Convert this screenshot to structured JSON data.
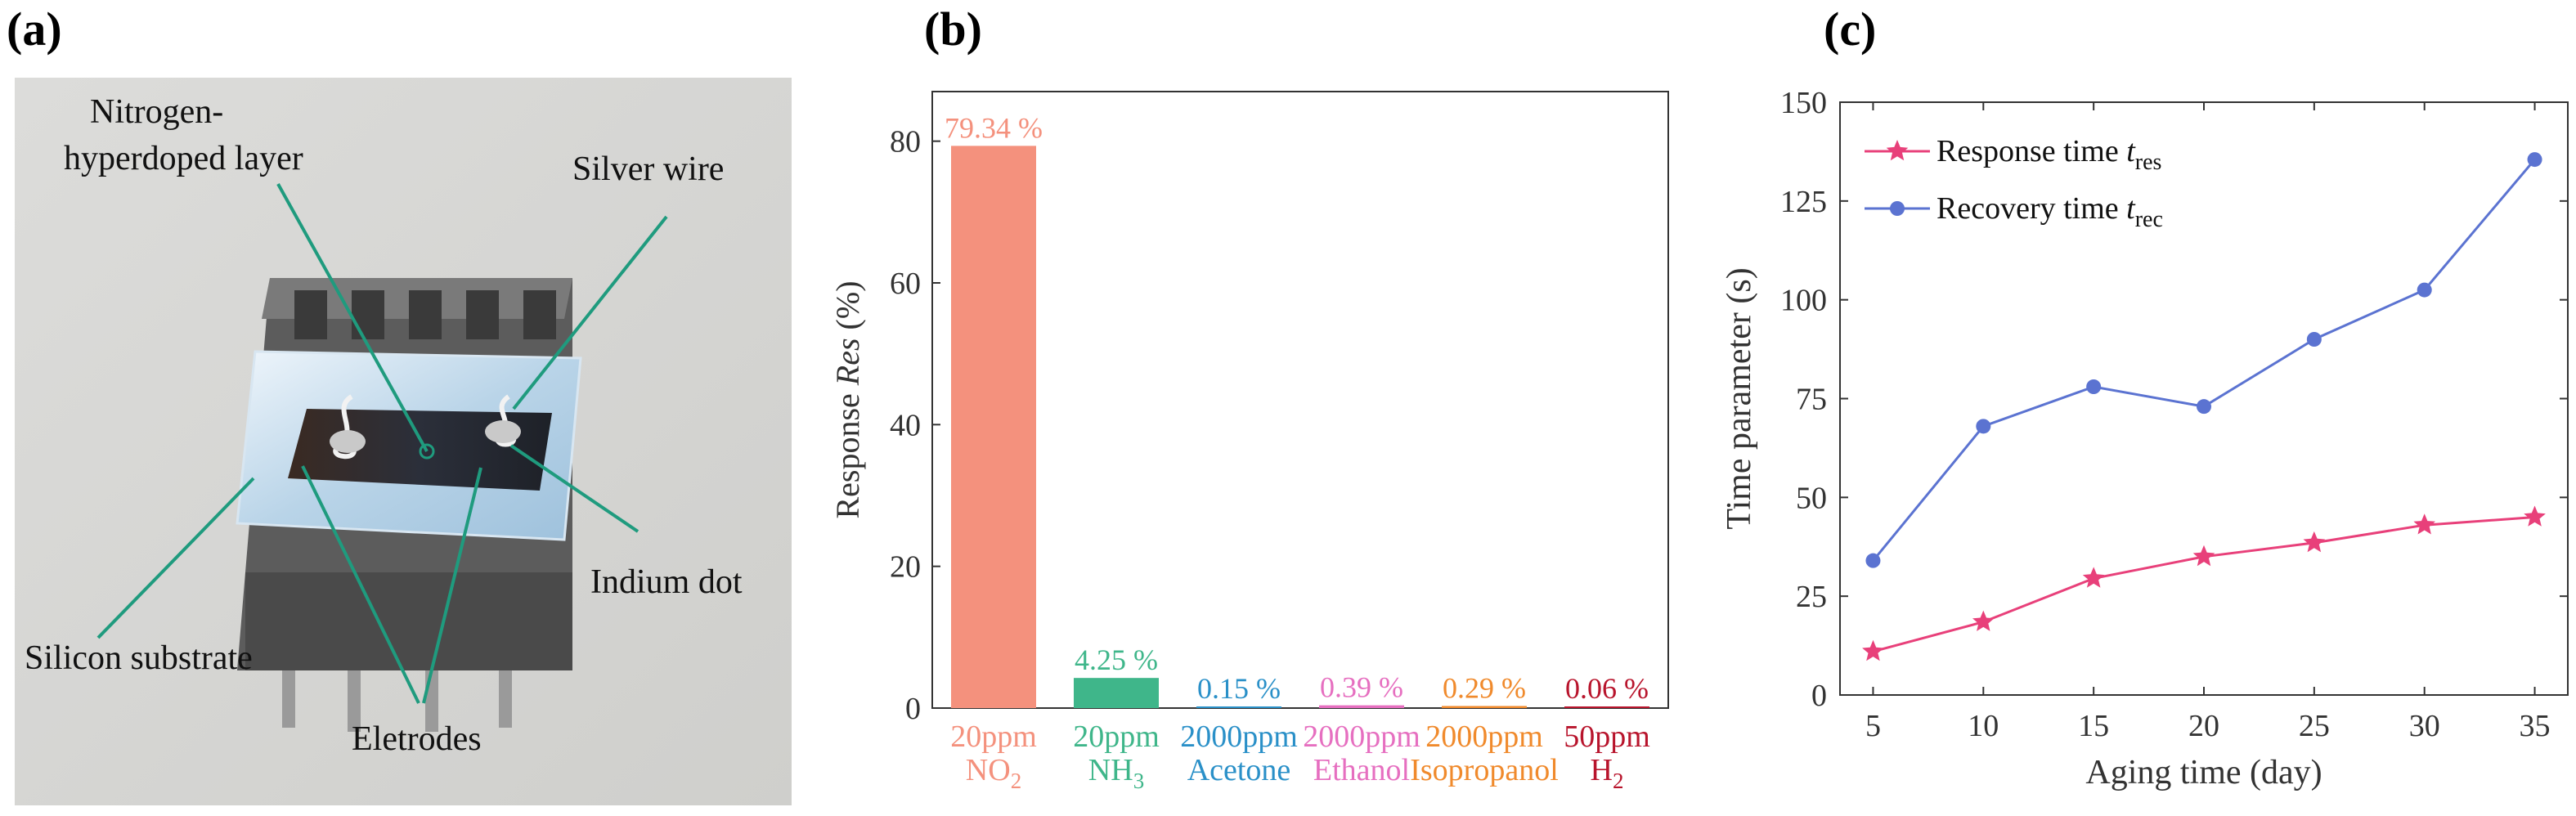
{
  "panels": {
    "a": {
      "label": "(a)"
    },
    "b": {
      "label": "(b)"
    },
    "c": {
      "label": "(c)"
    }
  },
  "photo": {
    "annotations": {
      "nitrogen_line1": "Nitrogen-",
      "nitrogen_line2": "hyperdoped layer",
      "silver_wire": "Silver wire",
      "indium_dot": "Indium dot",
      "silicon_substrate": "Silicon substrate",
      "electrodes": "Eletrodes"
    }
  },
  "chart_data": [
    {
      "type": "bar",
      "ylabel_prefix": "Response ",
      "ylabel_italic": "Res",
      "ylabel_suffix": " (%)",
      "ylim": [
        0,
        87
      ],
      "yticks": [
        0,
        20,
        40,
        60,
        80
      ],
      "categories": [
        {
          "line1": "20ppm",
          "gas": "NO",
          "sub": "2",
          "value": 79.34,
          "label": "79.34 %",
          "color": "#f4917d"
        },
        {
          "line1": "20ppm",
          "gas": "NH",
          "sub": "3",
          "value": 4.25,
          "label": "4.25 %",
          "color": "#3fb68a"
        },
        {
          "line1": "2000ppm",
          "gas": "Acetone",
          "sub": "",
          "value": 0.15,
          "label": "0.15 %",
          "color": "#2a90c8"
        },
        {
          "line1": "2000ppm",
          "gas": "Ethanol",
          "sub": "",
          "value": 0.39,
          "label": "0.39 %",
          "color": "#e66fc0"
        },
        {
          "line1": "2000ppm",
          "gas": "Isopropanol",
          "sub": "",
          "value": 0.29,
          "label": "0.29 %",
          "color": "#f08a2c"
        },
        {
          "line1": "50ppm",
          "gas": "H",
          "sub": "2",
          "value": 0.06,
          "label": "0.06 %",
          "color": "#b8142c"
        }
      ]
    },
    {
      "type": "line",
      "xlabel": "Aging  time (day)",
      "ylabel": "Time  parameter  (s)",
      "xlim": [
        3.5,
        36.5
      ],
      "ylim": [
        0,
        150
      ],
      "x": [
        5,
        10,
        15,
        20,
        25,
        30,
        35
      ],
      "xticks": [
        5,
        10,
        15,
        20,
        25,
        30,
        35
      ],
      "yticks": [
        0,
        25,
        50,
        75,
        100,
        125,
        150
      ],
      "legend_position": "top-left",
      "series": [
        {
          "name": "Response time ",
          "symbol": "t",
          "sub": "res",
          "marker": "star",
          "color": "#e8407a",
          "values": [
            11,
            18.5,
            29.5,
            35,
            38.5,
            43,
            45
          ]
        },
        {
          "name": "Recovery time ",
          "symbol": "t",
          "sub": "rec",
          "marker": "circle",
          "color": "#5b73d1",
          "values": [
            34,
            68,
            78,
            73,
            90,
            102.5,
            135.5
          ]
        }
      ]
    }
  ]
}
